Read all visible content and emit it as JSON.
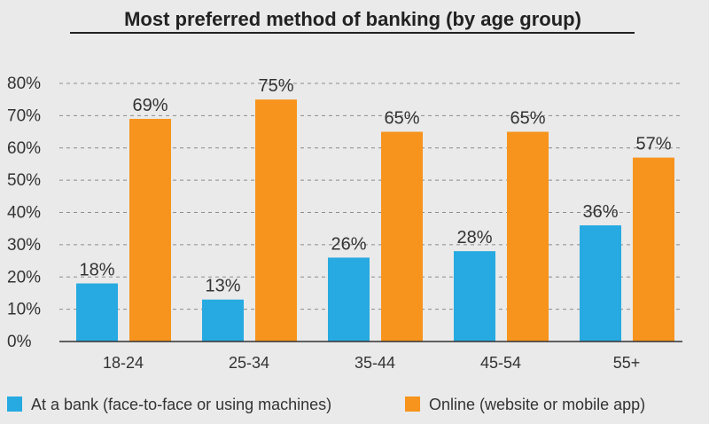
{
  "chart_data": {
    "type": "bar",
    "title": "Most preferred method of banking (by age group)",
    "xlabel": "",
    "ylabel": "",
    "categories": [
      "18-24",
      "25-34",
      "35-44",
      "45-54",
      "55+"
    ],
    "series": [
      {
        "name": "At a bank (face-to-face or using machines)",
        "values": [
          18,
          13,
          26,
          28,
          36
        ],
        "labels": [
          "18%",
          "13%",
          "26%",
          "28%",
          "36%"
        ],
        "color": "#27aae1"
      },
      {
        "name": "Online (website or mobile app)",
        "values": [
          69,
          75,
          65,
          65,
          57
        ],
        "labels": [
          "69%",
          "75%",
          "65%",
          "65%",
          "57%"
        ],
        "color": "#f7941d"
      }
    ],
    "ylim": [
      0,
      80
    ],
    "yticks": [
      "0%",
      "10%",
      "20%",
      "30%",
      "40%",
      "50%",
      "60%",
      "70%",
      "80%"
    ],
    "grid": true,
    "legend_position": "bottom"
  }
}
